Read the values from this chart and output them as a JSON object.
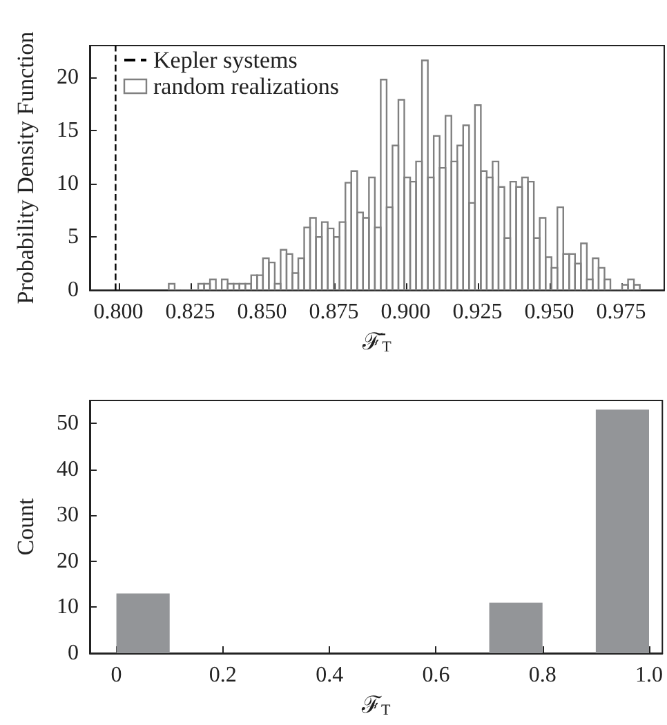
{
  "chart_data": [
    {
      "type": "histogram",
      "xlabel": "ℱ̄$_{T}$",
      "ylabel": "Probability Density Function",
      "legend": "top left",
      "xlim": [
        0.79,
        0.99
      ],
      "ylim": [
        0,
        23
      ],
      "xticks": [
        {
          "value": 0.8,
          "label": "0.800"
        },
        {
          "value": 0.825,
          "label": "0.825"
        },
        {
          "value": 0.85,
          "label": "0.850"
        },
        {
          "value": 0.875,
          "label": "0.875"
        },
        {
          "value": 0.9,
          "label": "0.900"
        },
        {
          "value": 0.925,
          "label": "0.925"
        },
        {
          "value": 0.95,
          "label": "0.950"
        },
        {
          "value": 0.975,
          "label": "0.975"
        }
      ],
      "yticks": [
        0,
        5,
        10,
        15,
        20
      ],
      "ref_lines": [
        {
          "axis": "x",
          "value": 0.799,
          "label": "Kepler systems",
          "line_style": "dashed",
          "color": "#000000"
        }
      ],
      "bins": [
        0.8175,
        0.81955,
        0.8216,
        0.82365,
        0.8257,
        0.82775,
        0.8298,
        0.83185,
        0.8339,
        0.83595,
        0.838,
        0.84005,
        0.8421,
        0.84415,
        0.8462,
        0.84825,
        0.8503,
        0.85235,
        0.8544,
        0.85645,
        0.8585,
        0.86055,
        0.8626,
        0.86465,
        0.8667,
        0.86875,
        0.8708,
        0.87285,
        0.8749,
        0.87695,
        0.879,
        0.88105,
        0.8831,
        0.88515,
        0.8872,
        0.88925,
        0.8913,
        0.89335,
        0.8954,
        0.89745,
        0.8995,
        0.90155,
        0.9036,
        0.90565,
        0.9077,
        0.90975,
        0.9118,
        0.91385,
        0.9159,
        0.91795,
        0.92,
        0.92205,
        0.9241,
        0.92615,
        0.9282,
        0.93025,
        0.9323,
        0.93435,
        0.9364,
        0.93845,
        0.9405,
        0.94255,
        0.9446,
        0.94665,
        0.9487,
        0.95075,
        0.9528,
        0.95485,
        0.9569,
        0.95895,
        0.961,
        0.96305,
        0.9651,
        0.96715,
        0.9692,
        0.97125,
        0.9733,
        0.97535,
        0.9774,
        0.97945,
        0.9815
      ],
      "series": [
        {
          "name": "random realizations",
          "color": "#808080",
          "line_style": "solid",
          "values": [
            0.6,
            0,
            0,
            0,
            0,
            0.6,
            0.6,
            1.0,
            0,
            1.0,
            0.6,
            0.6,
            0.6,
            0.6,
            1.4,
            1.4,
            3.0,
            2.6,
            0.6,
            3.8,
            3.4,
            1.6,
            3.0,
            5.9,
            6.8,
            5.0,
            6.4,
            5.8,
            5.0,
            6.4,
            10.1,
            11.2,
            7.3,
            6.8,
            10.6,
            5.9,
            19.8,
            7.8,
            13.6,
            17.9,
            10.6,
            10.2,
            12.1,
            21.6,
            10.6,
            14.5,
            11.5,
            16.4,
            12.1,
            13.6,
            15.5,
            8.2,
            17.4,
            11.2,
            10.6,
            12.1,
            9.7,
            4.9,
            10.2,
            9.7,
            10.6,
            10.2,
            4.9,
            6.8,
            3.1,
            2.1,
            7.8,
            3.4,
            3.4,
            2.5,
            4.4,
            1.0,
            3.0,
            2.1,
            1.0,
            0,
            0,
            0.5,
            1.0,
            0.5
          ]
        }
      ]
    },
    {
      "type": "histogram",
      "xlabel": "ℱ$_{T}$",
      "ylabel": "Count",
      "xlim": [
        -0.05,
        1.025
      ],
      "ylim": [
        0,
        55
      ],
      "xticks": [
        0,
        {
          "value": 0.2,
          "label": "0.2"
        },
        {
          "value": 0.4,
          "label": "0.4"
        },
        {
          "value": 0.6,
          "label": "0.6"
        },
        {
          "value": 0.8,
          "label": "0.8"
        },
        {
          "value": 1.0,
          "label": "1.0"
        }
      ],
      "yticks": [
        0,
        10,
        20,
        30,
        40,
        50
      ],
      "bins": [
        0,
        0.1,
        0.2,
        0.3,
        0.4,
        0.5,
        0.6,
        0.7,
        0.8,
        0.9,
        1.0
      ],
      "series": [
        {
          "color": "#939598",
          "values": [
            13,
            0,
            0,
            0,
            0,
            0,
            0,
            11,
            0,
            53
          ]
        }
      ]
    }
  ]
}
